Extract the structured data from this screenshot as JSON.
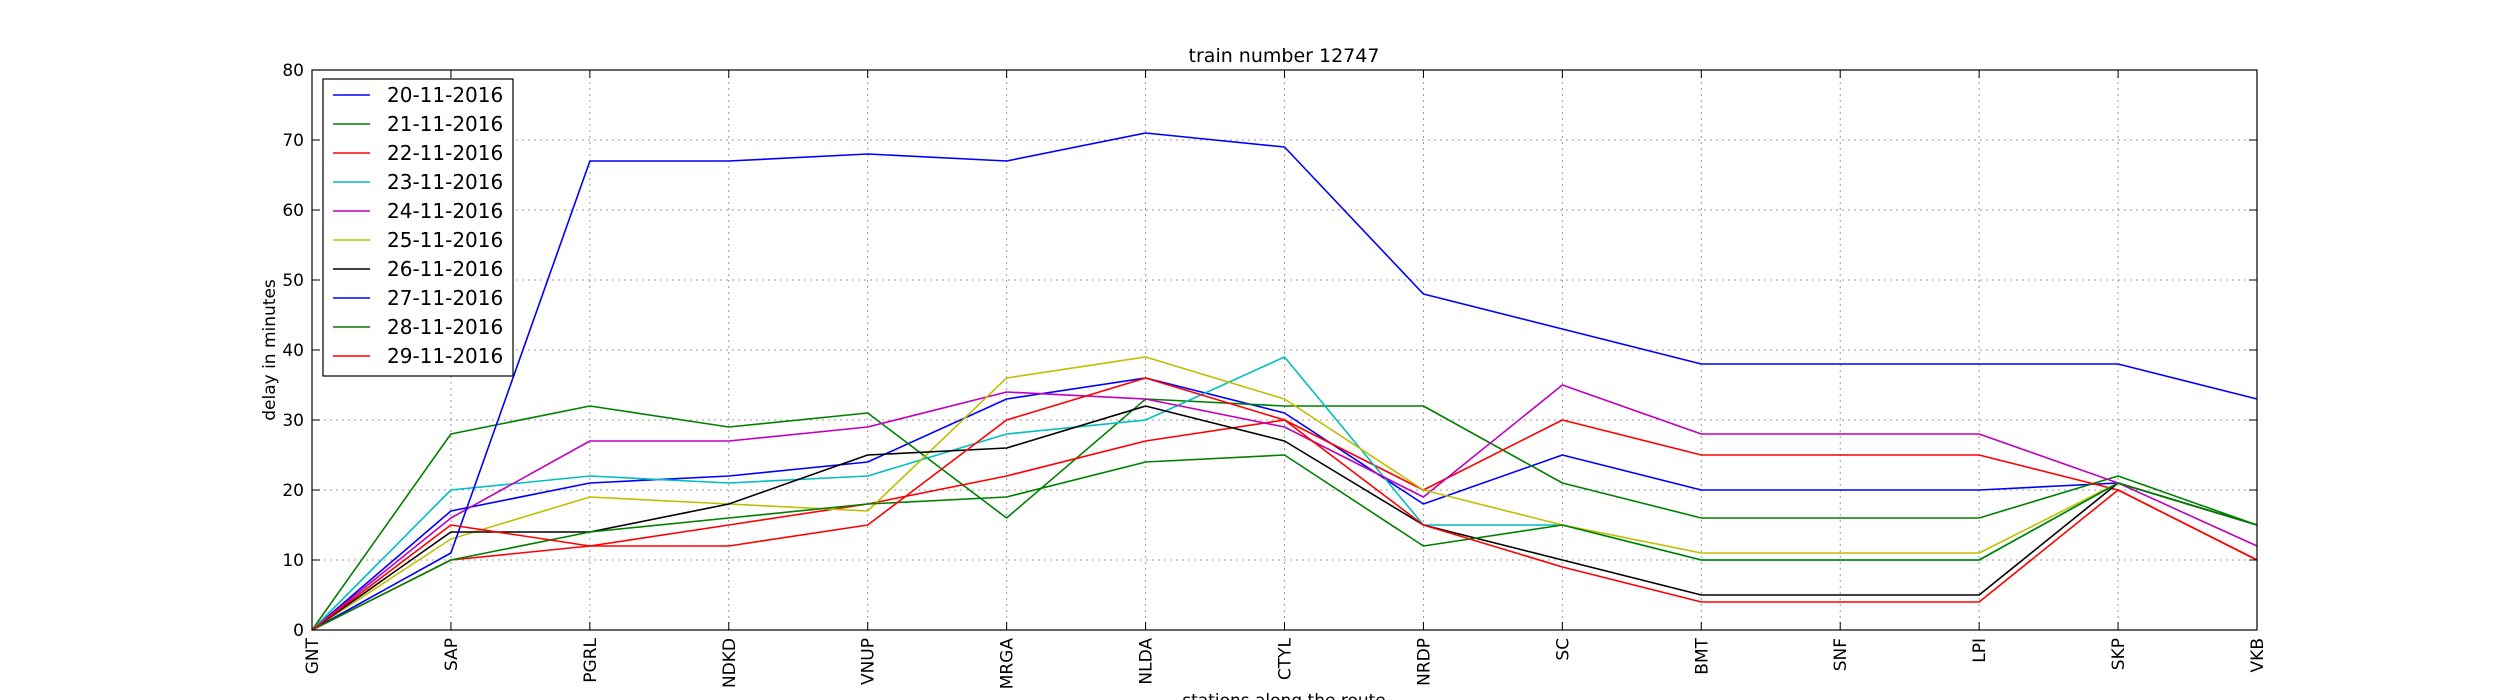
{
  "chart_data": {
    "type": "line",
    "title": "train number 12747",
    "xlabel": "stations along the route",
    "ylabel": "delay in minutes",
    "ylim": [
      0,
      80
    ],
    "yticks": [
      0,
      10,
      20,
      30,
      40,
      50,
      60,
      70,
      80
    ],
    "grid": true,
    "legend_position": "top-left",
    "categories": [
      "GNT",
      "SAP",
      "PGRL",
      "NDKD",
      "VNUP",
      "MRGA",
      "NLDA",
      "CTYL",
      "NRDP",
      "SC",
      "BMT",
      "SNF",
      "LPI",
      "SKP",
      "VKB"
    ],
    "series": [
      {
        "name": "20-11-2016",
        "color": "#0000ff",
        "values": [
          0,
          17,
          21,
          22,
          24,
          33,
          36,
          31,
          18,
          25,
          20,
          20,
          20,
          21,
          15
        ]
      },
      {
        "name": "21-11-2016",
        "color": "#008000",
        "values": [
          0,
          28,
          32,
          29,
          31,
          16,
          33,
          32,
          32,
          21,
          16,
          16,
          16,
          22,
          15
        ]
      },
      {
        "name": "22-11-2016",
        "color": "#ff0000",
        "values": [
          0,
          10,
          12,
          15,
          18,
          22,
          27,
          30,
          20,
          30,
          25,
          25,
          25,
          20,
          10
        ]
      },
      {
        "name": "23-11-2016",
        "color": "#00bfbf",
        "values": [
          0,
          20,
          22,
          21,
          22,
          28,
          30,
          39,
          15,
          15,
          10,
          10,
          10,
          21,
          15
        ]
      },
      {
        "name": "24-11-2016",
        "color": "#bf00bf",
        "values": [
          0,
          16,
          27,
          27,
          29,
          34,
          33,
          29,
          19,
          35,
          28,
          28,
          28,
          21,
          12
        ]
      },
      {
        "name": "25-11-2016",
        "color": "#bfbf00",
        "values": [
          0,
          13,
          19,
          18,
          17,
          36,
          39,
          33,
          20,
          15,
          11,
          11,
          11,
          21,
          15
        ]
      },
      {
        "name": "26-11-2016",
        "color": "#000000",
        "values": [
          0,
          14,
          14,
          18,
          25,
          26,
          32,
          27,
          15,
          10,
          5,
          5,
          5,
          21,
          15
        ]
      },
      {
        "name": "27-11-2016",
        "color": "#0000ff",
        "values": [
          0,
          11,
          67,
          67,
          68,
          67,
          71,
          69,
          48,
          43,
          38,
          38,
          38,
          38,
          33
        ]
      },
      {
        "name": "28-11-2016",
        "color": "#008000",
        "values": [
          0,
          10,
          14,
          16,
          18,
          19,
          24,
          25,
          12,
          15,
          10,
          10,
          10,
          21,
          15
        ]
      },
      {
        "name": "29-11-2016",
        "color": "#ff0000",
        "values": [
          0,
          15,
          12,
          12,
          15,
          30,
          36,
          30,
          15,
          9,
          4,
          4,
          4,
          20,
          10
        ]
      }
    ]
  }
}
